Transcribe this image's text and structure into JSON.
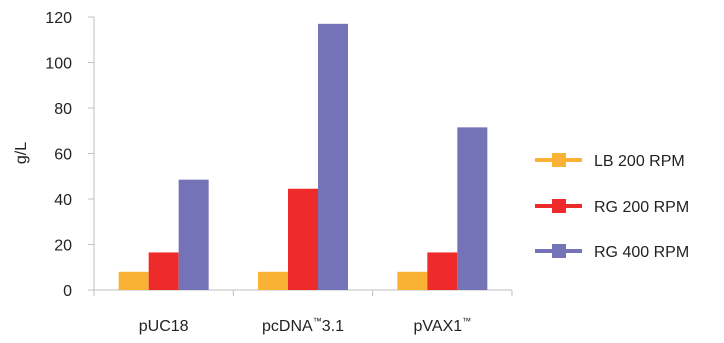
{
  "chart_data": {
    "type": "bar",
    "ylabel": "g/L",
    "ylim": [
      0,
      120
    ],
    "yticks": [
      0,
      20,
      40,
      60,
      80,
      100,
      120
    ],
    "grid": false,
    "legend_position": "right",
    "categories": [
      {
        "text": "pUC18",
        "sup": "",
        "tail": ""
      },
      {
        "text": "pcDNA",
        "sup": "™",
        "tail": "3.1"
      },
      {
        "text": "pVAX1",
        "sup": "™",
        "tail": ""
      }
    ],
    "series": [
      {
        "name": "LB 200 RPM",
        "color": "#F9B233",
        "values": [
          8,
          8,
          8
        ]
      },
      {
        "name": "RG 200 RPM",
        "color": "#EE2A2A",
        "values": [
          16.5,
          44.5,
          16.5
        ]
      },
      {
        "name": "RG 400 RPM",
        "color": "#7473B8",
        "values": [
          48.5,
          117,
          71.5
        ]
      }
    ]
  }
}
